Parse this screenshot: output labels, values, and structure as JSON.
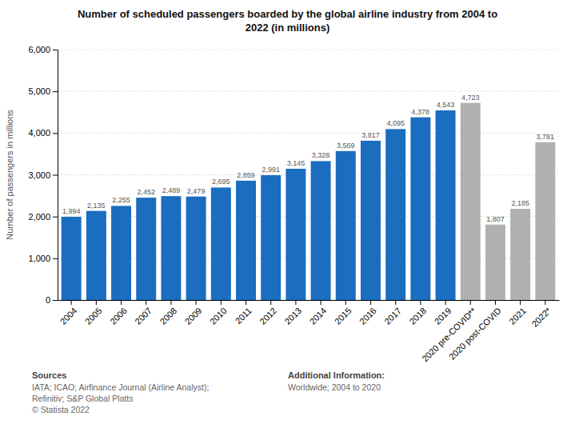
{
  "chart_data": {
    "type": "bar",
    "title": [
      "Number of scheduled passengers boarded by the global airline industry from 2004 to",
      "2022 (in millions)"
    ],
    "ylabel": "Number of passengers in millions",
    "categories": [
      "2004",
      "2005",
      "2006",
      "2007",
      "2008",
      "2009",
      "2010",
      "2011",
      "2012",
      "2013",
      "2014",
      "2015",
      "2016",
      "2017",
      "2018",
      "2019",
      "2020 pre-COVID**",
      "2020 post-COVID",
      "2021",
      "2022*"
    ],
    "values": [
      1994,
      2135,
      2255,
      2452,
      2489,
      2479,
      2695,
      2859,
      2991,
      3145,
      3328,
      3569,
      3817,
      4095,
      4378,
      4543,
      4723,
      1807,
      2185,
      3781
    ],
    "value_labels": [
      "1,994",
      "2,135",
      "2,255",
      "2,452",
      "2,489",
      "2,479",
      "2,695",
      "2,859",
      "2,991",
      "3,145",
      "3,328",
      "3,569",
      "3,817",
      "4,095",
      "4,378",
      "4,543",
      "4,723",
      "1,807",
      "2,185",
      "3,781"
    ],
    "data_labels": true,
    "colors": [
      "#1a6dbf",
      "#1a6dbf",
      "#1a6dbf",
      "#1a6dbf",
      "#1a6dbf",
      "#1a6dbf",
      "#1a6dbf",
      "#1a6dbf",
      "#1a6dbf",
      "#1a6dbf",
      "#1a6dbf",
      "#1a6dbf",
      "#1a6dbf",
      "#1a6dbf",
      "#1a6dbf",
      "#1a6dbf",
      "#b0b0b0",
      "#b0b0b0",
      "#b0b0b0",
      "#b0b0b0"
    ],
    "ylim": [
      0,
      6000
    ],
    "yticks": [
      0,
      {
        "value": 1000,
        "label": "1,000"
      },
      {
        "value": 2000,
        "label": "2,000"
      },
      {
        "value": 3000,
        "label": "3,000"
      },
      {
        "value": 4000,
        "label": "4,000"
      },
      {
        "value": 5000,
        "label": "5,000"
      },
      {
        "value": 6000,
        "label": "6,000"
      }
    ],
    "grid": true,
    "annotations": [
      "Sources",
      "IATA; ICAO; Airfinance Journal (Airline Analyst);\nRefinitiv; S&P Global Platts\n© Statista 2022",
      "Additional Information:",
      "Worldwide; 2004 to 2020"
    ]
  }
}
